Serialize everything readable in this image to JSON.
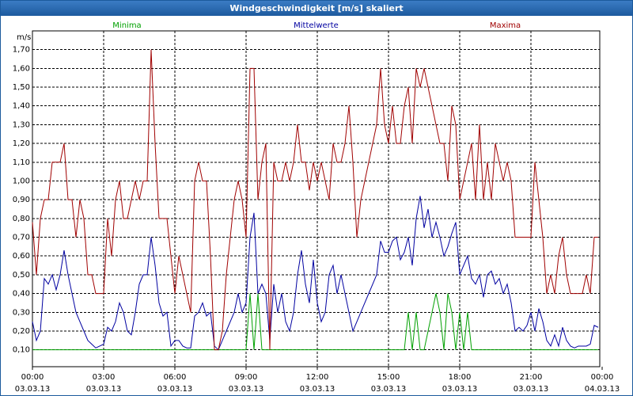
{
  "chart_data": {
    "type": "line",
    "title": "Windgeschwindigkeit [m/s] skaliert",
    "y_label": "m/s",
    "xlim": [
      0,
      1440
    ],
    "ylim": [
      0.01,
      1.8
    ],
    "grid": true,
    "xticks": [
      {
        "value": 0,
        "label": "00:00\n03.03.13"
      },
      {
        "value": 180,
        "label": "03:00\n03.03.13"
      },
      {
        "value": 360,
        "label": "06:00\n03.03.13"
      },
      {
        "value": 540,
        "label": "09:00\n03.03.13"
      },
      {
        "value": 720,
        "label": "12:00\n03.03.13"
      },
      {
        "value": 900,
        "label": "15:00\n03.03.13"
      },
      {
        "value": 1080,
        "label": "18:00\n03.03.13"
      },
      {
        "value": 1260,
        "label": "21:00\n03.03.13"
      },
      {
        "value": 1440,
        "label": "00:00\n04.03.13"
      }
    ],
    "yticks": [
      {
        "value": 0.1,
        "label": "0,10"
      },
      {
        "value": 0.2,
        "label": "0,20"
      },
      {
        "value": 0.3,
        "label": "0,30"
      },
      {
        "value": 0.4,
        "label": "0,40"
      },
      {
        "value": 0.5,
        "label": "0,50"
      },
      {
        "value": 0.6,
        "label": "0,60"
      },
      {
        "value": 0.7,
        "label": "0,70"
      },
      {
        "value": 0.8,
        "label": "0,80"
      },
      {
        "value": 0.9,
        "label": "0,90"
      },
      {
        "value": 1.0,
        "label": "1,00"
      },
      {
        "value": 1.1,
        "label": "1,10"
      },
      {
        "value": 1.2,
        "label": "1,20"
      },
      {
        "value": 1.3,
        "label": "1,30"
      },
      {
        "value": 1.4,
        "label": "1,40"
      },
      {
        "value": 1.5,
        "label": "1,50"
      },
      {
        "value": 1.6,
        "label": "1,60"
      },
      {
        "value": 1.7,
        "label": "1,70"
      }
    ],
    "x": [
      0,
      10,
      20,
      30,
      40,
      50,
      60,
      70,
      80,
      90,
      100,
      110,
      120,
      130,
      140,
      150,
      160,
      170,
      180,
      190,
      200,
      210,
      220,
      230,
      240,
      250,
      260,
      270,
      280,
      290,
      300,
      310,
      320,
      330,
      340,
      350,
      360,
      370,
      380,
      390,
      400,
      410,
      420,
      430,
      440,
      450,
      460,
      470,
      480,
      490,
      500,
      510,
      520,
      530,
      540,
      550,
      560,
      570,
      580,
      590,
      600,
      610,
      620,
      630,
      640,
      650,
      660,
      670,
      680,
      690,
      700,
      710,
      720,
      730,
      740,
      750,
      760,
      770,
      780,
      790,
      800,
      810,
      820,
      830,
      840,
      850,
      860,
      870,
      880,
      890,
      900,
      910,
      920,
      930,
      940,
      950,
      960,
      970,
      980,
      990,
      1000,
      1010,
      1020,
      1030,
      1040,
      1050,
      1060,
      1070,
      1080,
      1090,
      1100,
      1110,
      1120,
      1130,
      1140,
      1150,
      1160,
      1170,
      1180,
      1190,
      1200,
      1210,
      1220,
      1230,
      1240,
      1250,
      1260,
      1270,
      1280,
      1290,
      1300,
      1310,
      1320,
      1330,
      1340,
      1350,
      1360,
      1370,
      1380,
      1390,
      1400,
      1410,
      1420,
      1430
    ],
    "series": [
      {
        "name": "Minima",
        "color": "#00a000",
        "values": [
          0.1,
          0.1,
          0.1,
          0.1,
          0.1,
          0.1,
          0.1,
          0.1,
          0.1,
          0.1,
          0.1,
          0.1,
          0.1,
          0.1,
          0.1,
          0.1,
          0.1,
          0.1,
          0.1,
          0.1,
          0.1,
          0.1,
          0.1,
          0.1,
          0.1,
          0.1,
          0.1,
          0.1,
          0.1,
          0.1,
          0.1,
          0.1,
          0.1,
          0.1,
          0.1,
          0.1,
          0.1,
          0.1,
          0.1,
          0.1,
          0.1,
          0.1,
          0.1,
          0.1,
          0.1,
          0.1,
          0.1,
          0.1,
          0.1,
          0.1,
          0.1,
          0.1,
          0.1,
          0.1,
          0.1,
          0.4,
          0.1,
          0.4,
          0.1,
          0.1,
          0.1,
          0.1,
          0.1,
          0.1,
          0.1,
          0.1,
          0.1,
          0.1,
          0.1,
          0.1,
          0.1,
          0.1,
          0.1,
          0.1,
          0.1,
          0.1,
          0.1,
          0.1,
          0.1,
          0.1,
          0.1,
          0.1,
          0.1,
          0.1,
          0.1,
          0.1,
          0.1,
          0.1,
          0.1,
          0.1,
          0.1,
          0.1,
          0.1,
          0.1,
          0.1,
          0.3,
          0.1,
          0.3,
          0.1,
          0.1,
          0.2,
          0.3,
          0.4,
          0.3,
          0.1,
          0.4,
          0.3,
          0.1,
          0.3,
          0.1,
          0.3,
          0.1,
          0.1,
          0.1,
          0.1,
          0.1,
          0.1,
          0.1,
          0.1,
          0.1,
          0.1,
          0.1,
          0.1,
          0.1,
          0.1,
          0.1,
          0.1,
          0.1,
          0.1,
          0.1,
          0.1,
          0.1,
          0.1,
          0.1,
          0.1,
          0.1,
          0.1,
          0.1,
          0.1,
          0.1,
          0.1,
          0.1,
          0.1,
          0.1
        ]
      },
      {
        "name": "Mittelwerte",
        "color": "#0000a0",
        "values": [
          0.25,
          0.15,
          0.2,
          0.48,
          0.45,
          0.5,
          0.42,
          0.5,
          0.63,
          0.5,
          0.4,
          0.3,
          0.25,
          0.2,
          0.15,
          0.13,
          0.11,
          0.12,
          0.13,
          0.22,
          0.2,
          0.25,
          0.35,
          0.3,
          0.2,
          0.18,
          0.3,
          0.45,
          0.5,
          0.5,
          0.7,
          0.55,
          0.35,
          0.28,
          0.3,
          0.12,
          0.15,
          0.15,
          0.12,
          0.11,
          0.11,
          0.28,
          0.3,
          0.35,
          0.28,
          0.3,
          0.12,
          0.1,
          0.15,
          0.2,
          0.25,
          0.3,
          0.4,
          0.3,
          0.35,
          0.7,
          0.83,
          0.4,
          0.45,
          0.4,
          0.15,
          0.45,
          0.3,
          0.4,
          0.25,
          0.2,
          0.3,
          0.5,
          0.63,
          0.45,
          0.35,
          0.58,
          0.35,
          0.25,
          0.3,
          0.5,
          0.55,
          0.4,
          0.5,
          0.4,
          0.3,
          0.2,
          0.25,
          0.3,
          0.35,
          0.4,
          0.45,
          0.5,
          0.68,
          0.62,
          0.62,
          0.68,
          0.7,
          0.58,
          0.62,
          0.7,
          0.55,
          0.8,
          0.92,
          0.75,
          0.85,
          0.7,
          0.78,
          0.7,
          0.6,
          0.65,
          0.72,
          0.78,
          0.5,
          0.55,
          0.6,
          0.48,
          0.45,
          0.5,
          0.38,
          0.5,
          0.52,
          0.45,
          0.48,
          0.4,
          0.45,
          0.35,
          0.2,
          0.22,
          0.2,
          0.23,
          0.3,
          0.2,
          0.32,
          0.25,
          0.15,
          0.12,
          0.18,
          0.12,
          0.22,
          0.15,
          0.12,
          0.11,
          0.12,
          0.12,
          0.12,
          0.13,
          0.23,
          0.22
        ]
      },
      {
        "name": "Maxima",
        "color": "#a00000",
        "values": [
          0.78,
          0.5,
          0.8,
          0.9,
          0.9,
          1.1,
          1.1,
          1.1,
          1.2,
          0.9,
          0.9,
          0.7,
          0.9,
          0.8,
          0.5,
          0.5,
          0.4,
          0.4,
          0.4,
          0.8,
          0.6,
          0.9,
          1.0,
          0.8,
          0.8,
          0.9,
          1.0,
          0.9,
          1.0,
          1.0,
          1.7,
          1.2,
          0.8,
          0.8,
          0.8,
          0.6,
          0.4,
          0.6,
          0.5,
          0.4,
          0.3,
          1.0,
          1.1,
          1.0,
          1.0,
          0.6,
          0.1,
          0.1,
          0.2,
          0.5,
          0.7,
          0.9,
          1.0,
          0.9,
          0.7,
          1.6,
          1.6,
          0.9,
          1.1,
          1.2,
          0.1,
          1.1,
          1.0,
          1.0,
          1.1,
          1.0,
          1.1,
          1.3,
          1.1,
          1.1,
          0.95,
          1.1,
          1.0,
          1.1,
          1.0,
          0.9,
          1.2,
          1.1,
          1.1,
          1.2,
          1.4,
          1.1,
          0.7,
          0.9,
          1.0,
          1.1,
          1.2,
          1.3,
          1.6,
          1.3,
          1.2,
          1.4,
          1.2,
          1.2,
          1.4,
          1.5,
          1.2,
          1.6,
          1.5,
          1.6,
          1.5,
          1.4,
          1.3,
          1.2,
          1.2,
          1.0,
          1.4,
          1.3,
          0.9,
          1.0,
          1.1,
          1.2,
          0.9,
          1.3,
          0.9,
          1.1,
          0.9,
          1.2,
          1.1,
          1.0,
          1.1,
          1.0,
          0.7,
          0.7,
          0.7,
          0.7,
          0.7,
          1.1,
          0.9,
          0.7,
          0.4,
          0.5,
          0.4,
          0.6,
          0.7,
          0.5,
          0.4,
          0.4,
          0.4,
          0.4,
          0.5,
          0.4,
          0.7,
          0.7
        ]
      }
    ]
  }
}
